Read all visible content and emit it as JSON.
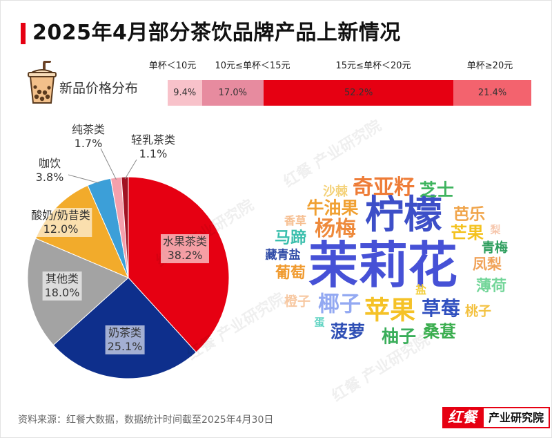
{
  "title": "2025年4月部分茶饮品牌产品上新情况",
  "chart_data": [
    {
      "type": "bar",
      "stacked": true,
      "orientation": "horizontal",
      "title": "新品价格分布",
      "categories": [
        "单杯＜10元",
        "10元≤单杯＜15元",
        "15元≤单杯＜20元",
        "单杯≥20元"
      ],
      "values": [
        9.4,
        17.0,
        52.2,
        21.4
      ],
      "unit": "%",
      "colors": [
        "#f8c2ca",
        "#e78b9f",
        "#e60012",
        "#f3636e"
      ]
    },
    {
      "type": "pie",
      "categories": [
        "水果茶类",
        "奶茶类",
        "其他类",
        "酸奶/奶昔类",
        "咖饮",
        "纯茶类",
        "轻乳茶类"
      ],
      "values": [
        38.2,
        25.1,
        18.0,
        12.0,
        3.8,
        1.7,
        1.1
      ],
      "unit": "%",
      "colors": [
        "#e60012",
        "#0e2f8c",
        "#a3a3a3",
        "#f2ab2b",
        "#3c9fd8",
        "#f5a0ac",
        "#a11222"
      ],
      "start": "top, clockwise"
    }
  ],
  "wordcloud": {
    "words": [
      {
        "text": "茉莉花",
        "color": "#4651d6"
      },
      {
        "text": "柠檬",
        "color": "#3d4fc8"
      },
      {
        "text": "苹果",
        "color": "#f5c227"
      },
      {
        "text": "奇亚籽",
        "color": "#ee7c37"
      },
      {
        "text": "椰子",
        "color": "#93a9f2"
      },
      {
        "text": "杨梅",
        "color": "#ee8a3c"
      },
      {
        "text": "草莓",
        "color": "#2f4fbf"
      },
      {
        "text": "牛油果",
        "color": "#f0a032"
      },
      {
        "text": "芝士",
        "color": "#3fb45f"
      },
      {
        "text": "柚子",
        "color": "#3aae5a"
      },
      {
        "text": "菠萝",
        "color": "#2f4fb5"
      },
      {
        "text": "桑葚",
        "color": "#3aad4e"
      },
      {
        "text": "芒果",
        "color": "#f4c21e"
      },
      {
        "text": "马蹄",
        "color": "#3bbfad"
      },
      {
        "text": "芭乐",
        "color": "#f0a44a"
      },
      {
        "text": "薄荷",
        "color": "#74d69a"
      },
      {
        "text": "葡萄",
        "color": "#f09a2e"
      },
      {
        "text": "凤梨",
        "color": "#f0a35a"
      },
      {
        "text": "青梅",
        "color": "#2e9e5e"
      },
      {
        "text": "桃子",
        "color": "#f3c13f"
      },
      {
        "text": "橙子",
        "color": "#f7c8a2"
      },
      {
        "text": "沙棘",
        "color": "#f4d27a"
      },
      {
        "text": "藏青盐",
        "color": "#2e4aa6"
      },
      {
        "text": "香草",
        "color": "#f6bf92"
      },
      {
        "text": "盐",
        "color": "#f2ce3a"
      },
      {
        "text": "梨",
        "color": "#f6c6ac"
      },
      {
        "text": "蛋",
        "color": "#5fd3c2"
      }
    ]
  },
  "footer": {
    "source": "资料来源：红餐大数据，数据统计时间截至2025年4月30日"
  },
  "logo": {
    "mark": "红餐",
    "org": "产业研究院"
  },
  "watermark": "红餐 产业研究院",
  "colors": {
    "brand_red": "#e60012"
  }
}
